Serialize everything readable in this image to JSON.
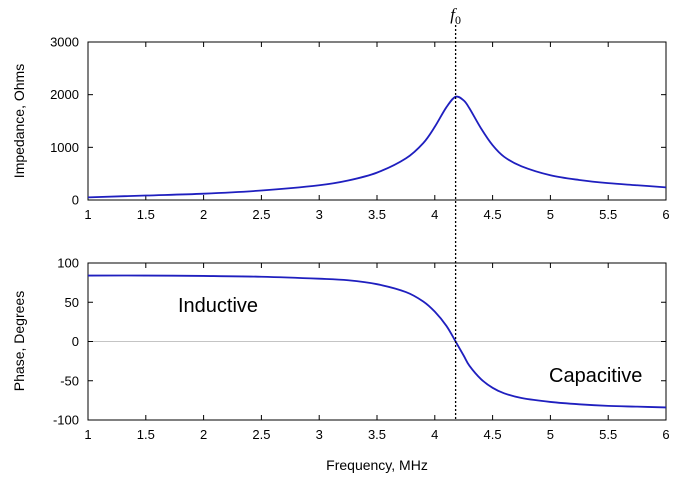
{
  "chart_data": [
    {
      "type": "line",
      "xlabel": "",
      "ylabel": "Impedance, Ohms",
      "xlim": [
        1,
        6
      ],
      "ylim": [
        0,
        3000
      ],
      "x_ticks": [
        "1",
        "1.5",
        "2",
        "2.5",
        "3",
        "3.5",
        "4",
        "4.5",
        "5",
        "5.5",
        "6"
      ],
      "y_ticks": [
        "0",
        "1000",
        "2000",
        "3000"
      ],
      "grid": false,
      "series": [
        {
          "color": "#1f1fbf",
          "x": [
            1.0,
            1.5,
            2.0,
            2.5,
            3.0,
            3.25,
            3.5,
            3.75,
            3.9,
            4.0,
            4.1,
            4.18,
            4.25,
            4.3,
            4.4,
            4.5,
            4.6,
            4.75,
            5.0,
            5.25,
            5.5,
            5.75,
            6.0
          ],
          "values": [
            50,
            85,
            120,
            180,
            280,
            370,
            520,
            790,
            1080,
            1390,
            1760,
            1960,
            1890,
            1740,
            1360,
            1040,
            820,
            640,
            470,
            380,
            320,
            280,
            240
          ]
        }
      ]
    },
    {
      "type": "line",
      "xlabel": "Frequency, MHz",
      "ylabel": "Phase, Degrees",
      "xlim": [
        1,
        6
      ],
      "ylim": [
        -100,
        100
      ],
      "x_ticks": [
        "1",
        "1.5",
        "2",
        "2.5",
        "3",
        "3.5",
        "4",
        "4.5",
        "5",
        "5.5",
        "6"
      ],
      "y_ticks": [
        "100",
        "50",
        "0",
        "-50",
        "-100"
      ],
      "grid": false,
      "zero_line": true,
      "series": [
        {
          "color": "#1f1fbf",
          "x": [
            1.0,
            1.5,
            2.0,
            2.5,
            3.0,
            3.25,
            3.5,
            3.75,
            3.9,
            4.0,
            4.1,
            4.18,
            4.25,
            4.3,
            4.4,
            4.5,
            4.6,
            4.75,
            5.0,
            5.25,
            5.5,
            5.75,
            6.0
          ],
          "values": [
            84,
            84,
            83.5,
            82.5,
            80,
            78,
            73,
            63,
            51,
            38,
            20,
            0,
            -18,
            -31,
            -48,
            -59,
            -66,
            -72,
            -77,
            -80,
            -82,
            -83,
            -84
          ]
        }
      ],
      "annotations": [
        {
          "text": "Inductive"
        },
        {
          "text": "Capacitive"
        }
      ]
    }
  ],
  "resonance": {
    "x": 4.18,
    "label_main": "f",
    "label_sub": "0"
  }
}
